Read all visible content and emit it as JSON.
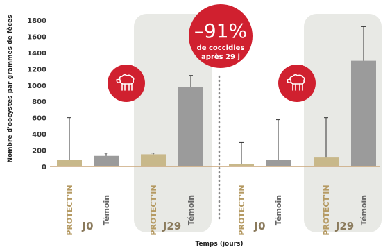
{
  "chart_data": {
    "type": "bar",
    "ylabel": "Nombre d'oocystes par grammes de fèces",
    "xlabel": "Temps (jours)",
    "ylim": [
      0,
      1800
    ],
    "yticks": [
      "0",
      "200",
      "400",
      "600",
      "800",
      "1000",
      "1200",
      "1400",
      "1600",
      "1800"
    ],
    "colors": {
      "protectin": "#c8b88a",
      "temoin": "#9b9b9b",
      "accent": "#d0202f",
      "panel": "#e8e9e5"
    },
    "groups": [
      {
        "label": "J0",
        "highlighted": false,
        "bars": [
          {
            "category": "PROTECT'IN",
            "value": 80,
            "error": 600,
            "series": "protectin"
          },
          {
            "category": "Témoin",
            "value": 130,
            "error": 165,
            "series": "temoin"
          }
        ]
      },
      {
        "label": "J29",
        "highlighted": true,
        "bars": [
          {
            "category": "PROTECT'IN",
            "value": 150,
            "error": 165,
            "series": "protectin"
          },
          {
            "category": "Témoin",
            "value": 980,
            "error": 1120,
            "series": "temoin"
          }
        ]
      },
      {
        "label": "J0",
        "highlighted": false,
        "bars": [
          {
            "category": "PROTECT'IN",
            "value": 30,
            "error": 295,
            "series": "protectin"
          },
          {
            "category": "Témoin",
            "value": 80,
            "error": 575,
            "series": "temoin"
          }
        ]
      },
      {
        "label": "J29",
        "highlighted": true,
        "bars": [
          {
            "category": "PROTECT'IN",
            "value": 110,
            "error": 600,
            "series": "protectin"
          },
          {
            "category": "Témoin",
            "value": 1300,
            "error": 1720,
            "series": "temoin"
          }
        ]
      }
    ],
    "annotation": {
      "value": "–91%",
      "line1": "de coccidies",
      "line2": "après 29 j"
    },
    "icons": [
      "sheep-icon",
      "sheep-icon"
    ]
  }
}
